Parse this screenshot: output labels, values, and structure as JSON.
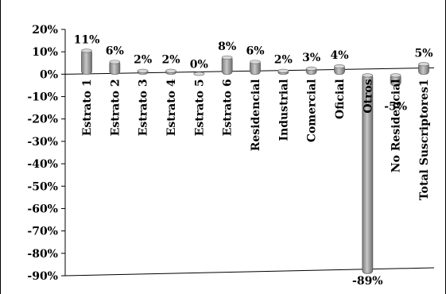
{
  "chart_data": {
    "type": "bar",
    "categories": [
      "Estrato 1",
      "Estrato 2",
      "Estrato 3",
      "Estrato 4",
      "Estrato 5",
      "Estrato 6",
      "Residencial",
      "Industrial",
      "Comercial",
      "Oficial",
      "Otros",
      "No Residencial",
      "Total Suscriptores1"
    ],
    "values": [
      11,
      6,
      2,
      2,
      0,
      8,
      6,
      2,
      3,
      4,
      -89,
      -5,
      5
    ],
    "data_labels": [
      "11%",
      "6%",
      "2%",
      "2%",
      "0%",
      "8%",
      "6%",
      "2%",
      "3%",
      "4%",
      "-89%",
      "-5%",
      "5%"
    ],
    "ylim": [
      -90,
      20
    ],
    "yticks": [
      20,
      10,
      0,
      -10,
      -20,
      -30,
      -40,
      -50,
      -60,
      -70,
      -80,
      -90
    ],
    "ytick_labels": [
      "20%",
      "10%",
      "0%",
      "-10%",
      "-20%",
      "-30%",
      "-40%",
      "-50%",
      "-60%",
      "-70%",
      "-80%",
      "-90%"
    ],
    "title": "",
    "xlabel": "",
    "ylabel": "",
    "grid": false,
    "legend": "none",
    "bar_color": "#8c8c8c",
    "bar_highlight": "#c8c8c8"
  }
}
